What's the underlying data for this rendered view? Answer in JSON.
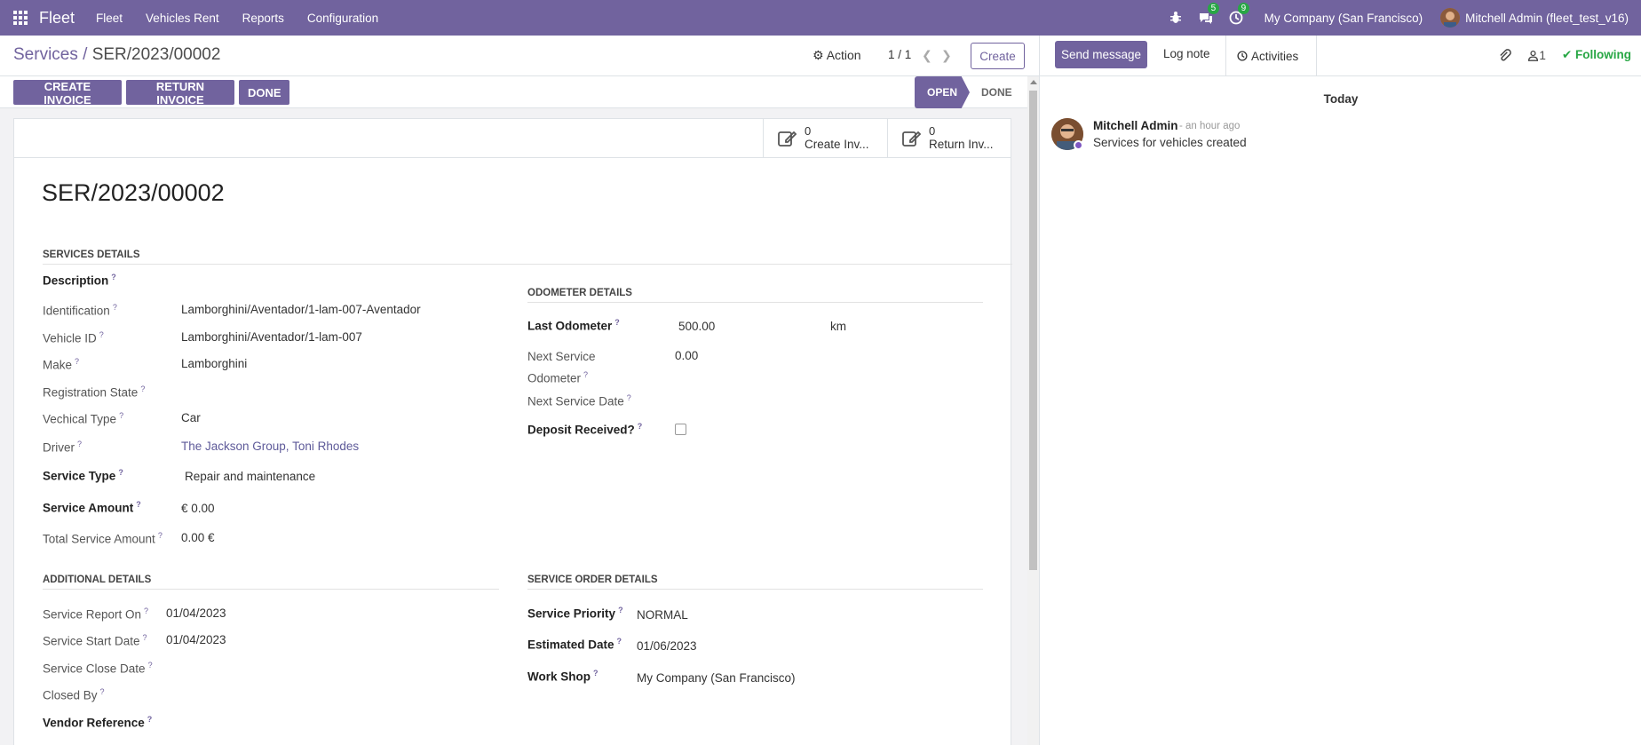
{
  "navbar": {
    "app_name": "Fleet",
    "menu": [
      "Fleet",
      "Vehicles Rent",
      "Reports",
      "Configuration"
    ],
    "messages_count": "5",
    "activities_count": "9",
    "company": "My Company (San Francisco)",
    "user": "Mitchell Admin (fleet_test_v16)"
  },
  "control": {
    "breadcrumb_parent": "Services",
    "breadcrumb_sep": " / ",
    "breadcrumb_current": "SER/2023/00002",
    "action_label": "Action",
    "pager": "1 / 1",
    "create_label": "Create"
  },
  "statusbar": {
    "create_invoice": "CREATE INVOICE",
    "return_invoice": "RETURN INVOICE",
    "done": "DONE",
    "stage_open": "OPEN",
    "stage_done": "DONE"
  },
  "smart_buttons": [
    {
      "count": "0",
      "label": "Create Inv..."
    },
    {
      "count": "0",
      "label": "Return Inv..."
    }
  ],
  "record": {
    "title": "SER/2023/00002",
    "services_details": {
      "heading": "SERVICES DETAILS",
      "description_label": "Description",
      "identification_label": "Identification",
      "identification": "Lamborghini/Aventador/1-lam-007-Aventador",
      "vehicle_id_label": "Vehicle ID",
      "vehicle_id": "Lamborghini/Aventador/1-lam-007",
      "make_label": "Make",
      "make": "Lamborghini",
      "registration_label": "Registration State",
      "vehicle_type_label": "Vechical Type",
      "vehicle_type": "Car",
      "driver_label": "Driver",
      "driver": "The Jackson Group, Toni Rhodes",
      "service_type_label": "Service Type",
      "service_type": "Repair and maintenance",
      "service_amount_label": "Service Amount",
      "service_amount": "€ 0.00",
      "total_amount_label": "Total Service Amount",
      "total_amount": "0.00 €"
    },
    "odometer_details": {
      "heading": "ODOMETER DETAILS",
      "last_odometer_label": "Last Odometer",
      "last_odometer": "500.00",
      "unit": "km",
      "next_service_odo_label_1": "Next Service",
      "next_service_odo_label_2": "Odometer",
      "next_service_odo": "0.00",
      "next_service_date_label": "Next Service Date",
      "deposit_label": "Deposit Received?"
    },
    "additional_details": {
      "heading": "ADDITIONAL DETAILS",
      "report_on_label": "Service Report On",
      "report_on": "01/04/2023",
      "start_date_label": "Service Start Date",
      "start_date": "01/04/2023",
      "close_date_label": "Service Close Date",
      "closed_by_label": "Closed By",
      "vendor_ref_label": "Vendor Reference"
    },
    "service_order_details": {
      "heading": "SERVICE ORDER DETAILS",
      "priority_label": "Service Priority",
      "priority": "NORMAL",
      "estimated_date_label": "Estimated Date",
      "estimated_date": "01/06/2023",
      "work_shop_label": "Work Shop",
      "work_shop": "My Company (San Francisco)"
    }
  },
  "chatter": {
    "send_message": "Send message",
    "log_note": "Log note",
    "activities": "Activities",
    "followers_count": "1",
    "following": "Following",
    "today": "Today",
    "message": {
      "author": "Mitchell Admin",
      "time": "- an hour ago",
      "body": "Services for vehicles created"
    }
  },
  "colors": {
    "brand": "#71639e",
    "following": "#28a745",
    "badge": "#28a745"
  }
}
